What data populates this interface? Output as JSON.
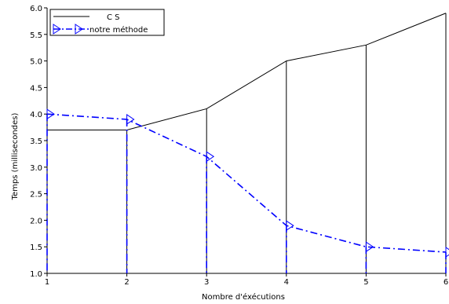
{
  "chart_data": {
    "type": "line",
    "xlabel": "Nombre d'éxécutions",
    "ylabel": "Temps (millisecondes)",
    "xlim": [
      1,
      6
    ],
    "ylim": [
      1.0,
      6.0
    ],
    "x_ticks": [
      "1",
      "2",
      "3",
      "4",
      "5",
      "6"
    ],
    "y_ticks": [
      "1.0",
      "1.5",
      "2.0",
      "2.5",
      "3.0",
      "3.5",
      "4.0",
      "4.5",
      "5.0",
      "5.5",
      "6.0"
    ],
    "grid": false,
    "legend_position": "top-left",
    "x": [
      1,
      2,
      3,
      4,
      5,
      6
    ],
    "series": [
      {
        "name": "C S",
        "values": [
          3.7,
          3.7,
          4.1,
          5.0,
          5.3,
          5.9
        ],
        "color": "#000000",
        "style": "solid",
        "drop_lines": true
      },
      {
        "name": "notre méthode",
        "values": [
          4.0,
          3.9,
          3.2,
          1.9,
          1.5,
          1.4
        ],
        "color": "#0000ff",
        "style": "dash-dot",
        "marker": "triangle-right",
        "drop_lines": true
      }
    ]
  }
}
